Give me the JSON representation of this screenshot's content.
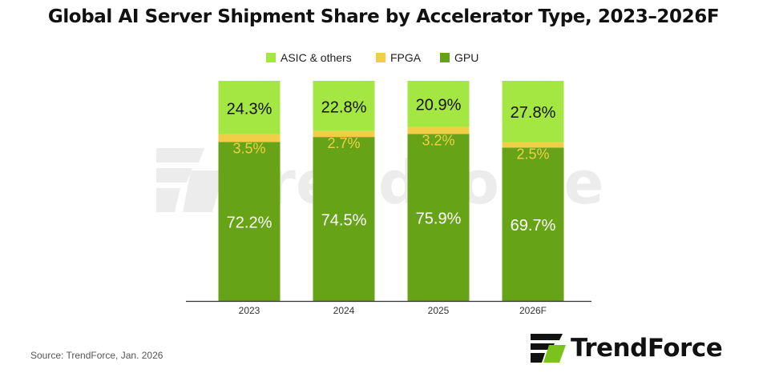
{
  "chart_data": {
    "type": "bar",
    "stacked": true,
    "title": "Global AI Server Shipment Share by Accelerator Type, 2023–2026F",
    "categories": [
      "2023",
      "2024",
      "2025",
      "2026F"
    ],
    "series": [
      {
        "name": "GPU",
        "color": "#66a316",
        "label_color": "#ffffff",
        "values": [
          72.2,
          74.5,
          75.9,
          69.7
        ]
      },
      {
        "name": "FPGA",
        "color": "#f0cf47",
        "label_color": "#f0cf47",
        "values": [
          3.5,
          2.7,
          3.2,
          2.5
        ]
      },
      {
        "name": "ASIC & others",
        "color": "#a4e642",
        "label_color": "#111111",
        "values": [
          24.3,
          22.8,
          20.9,
          27.8
        ]
      }
    ],
    "legend_order": [
      "ASIC & others",
      "FPGA",
      "GPU"
    ],
    "legend_position": "top-center",
    "value_suffix": "%",
    "ylim": [
      0,
      100
    ],
    "xlabel": "",
    "ylabel": ""
  },
  "footer": {
    "source": "Source: TrendForce, Jan. 2026",
    "logo_text": "TrendForce"
  },
  "watermark": "TrendForce"
}
